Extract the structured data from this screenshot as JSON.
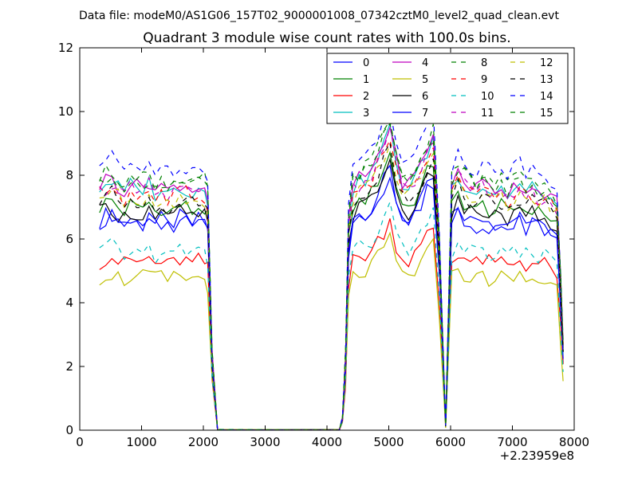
{
  "suptitle": "Data file: modeM0/AS1G06_157T02_9000001008_07342cztM0_level2_quad_clean.evt",
  "chart_data": {
    "type": "line",
    "title": "Quadrant 3 module wise count rates with 100.0s bins.",
    "xlabel": "",
    "ylabel": "",
    "x_offset_label": "+2.23959e8",
    "xlim": [
      0,
      8000
    ],
    "ylim": [
      0,
      12
    ],
    "xticks": [
      "0",
      "1000",
      "2000",
      "3000",
      "4000",
      "5000",
      "6000",
      "7000",
      "8000"
    ],
    "yticks": [
      "0",
      "2",
      "4",
      "6",
      "8",
      "10",
      "12"
    ],
    "grid": false,
    "legend": {
      "placement": "top-right",
      "columns": 4
    },
    "x": [
      320,
      420,
      520,
      620,
      720,
      820,
      920,
      1020,
      1120,
      1220,
      1320,
      1420,
      1520,
      1620,
      1720,
      1820,
      1920,
      2020,
      2070,
      2140,
      2230,
      4200,
      4250,
      4300,
      4350,
      4420,
      4520,
      4620,
      4720,
      4820,
      4920,
      5020,
      5120,
      5220,
      5320,
      5420,
      5520,
      5620,
      5720,
      5820,
      5920,
      6020,
      6120,
      6220,
      6320,
      6420,
      6520,
      6620,
      6720,
      6820,
      6920,
      7020,
      7120,
      7220,
      7320,
      7420,
      7520,
      7620,
      7720,
      7780,
      7820
    ],
    "shape": [
      1.0,
      1.02,
      1.03,
      1.0,
      0.98,
      1.01,
      0.99,
      1.0,
      1.02,
      0.98,
      1.0,
      0.97,
      0.99,
      1.01,
      1.0,
      0.98,
      1.0,
      0.99,
      0.95,
      0.3,
      0.0,
      0.0,
      0.05,
      0.3,
      0.85,
      1.0,
      1.02,
      1.04,
      1.06,
      1.12,
      1.18,
      1.24,
      1.1,
      1.02,
      1.0,
      1.04,
      1.08,
      1.15,
      1.2,
      0.75,
      0.02,
      1.0,
      1.06,
      1.02,
      1.0,
      0.98,
      1.01,
      0.99,
      0.98,
      1.0,
      0.97,
      0.99,
      1.01,
      0.98,
      1.0,
      0.97,
      0.98,
      0.95,
      0.93,
      0.6,
      0.35
    ],
    "series": [
      {
        "name": "0",
        "color": "#0000ff",
        "dash": "solid",
        "level": 6.6
      },
      {
        "name": "1",
        "color": "#008000",
        "dash": "solid",
        "level": 7.0
      },
      {
        "name": "2",
        "color": "#ff0000",
        "dash": "solid",
        "level": 5.3
      },
      {
        "name": "3",
        "color": "#00bfbf",
        "dash": "solid",
        "level": 7.6
      },
      {
        "name": "4",
        "color": "#bf00bf",
        "dash": "solid",
        "level": 7.7
      },
      {
        "name": "5",
        "color": "#bfbf00",
        "dash": "solid",
        "level": 4.8
      },
      {
        "name": "6",
        "color": "#000000",
        "dash": "solid",
        "level": 6.8
      },
      {
        "name": "7",
        "color": "#0000ff",
        "dash": "solid",
        "level": 6.5
      },
      {
        "name": "8",
        "color": "#008000",
        "dash": "dashed",
        "level": 7.9
      },
      {
        "name": "9",
        "color": "#ff0000",
        "dash": "dashed",
        "level": 7.4
      },
      {
        "name": "10",
        "color": "#00bfbf",
        "dash": "dashed",
        "level": 5.6
      },
      {
        "name": "11",
        "color": "#bf00bf",
        "dash": "dashed",
        "level": 7.5
      },
      {
        "name": "12",
        "color": "#bfbf00",
        "dash": "dashed",
        "level": 7.3
      },
      {
        "name": "13",
        "color": "#000000",
        "dash": "dashed",
        "level": 7.2
      },
      {
        "name": "14",
        "color": "#0000ff",
        "dash": "dashed",
        "level": 8.3
      },
      {
        "name": "15",
        "color": "#008000",
        "dash": "dashed",
        "level": 7.8
      }
    ]
  }
}
